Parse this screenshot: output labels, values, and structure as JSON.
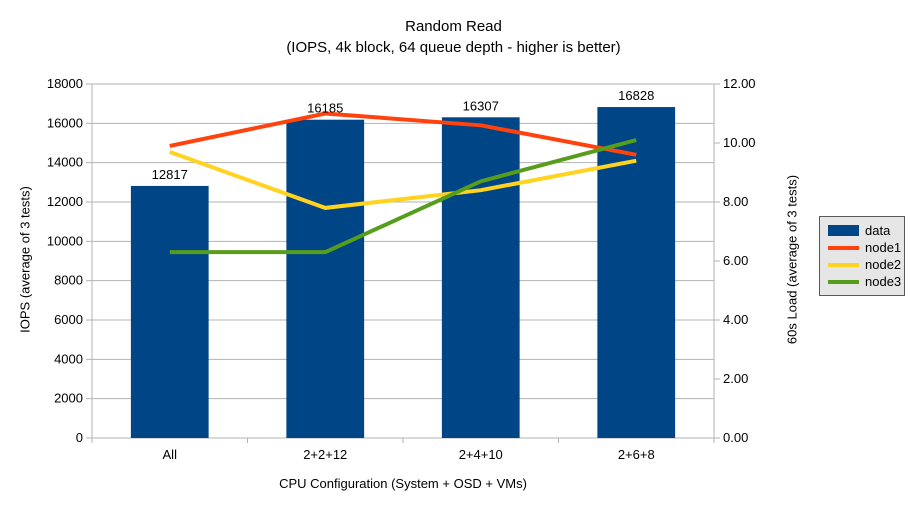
{
  "chart_data": {
    "type": "bar+line",
    "title": "Random Read",
    "subtitle": "(IOPS, 4k block, 64 queue depth - higher is better)",
    "categories": [
      "All",
      "2+2+12",
      "2+4+10",
      "2+6+8"
    ],
    "series": [
      {
        "name": "data",
        "type": "bar",
        "axis": "left",
        "color": "#004586",
        "values": [
          12817,
          16185,
          16307,
          16828
        ],
        "data_labels": true
      },
      {
        "name": "node1",
        "type": "line",
        "axis": "right",
        "color": "#FF420E",
        "values": [
          9.9,
          11.0,
          10.6,
          9.6
        ]
      },
      {
        "name": "node2",
        "type": "line",
        "axis": "right",
        "color": "#FFD320",
        "values": [
          9.7,
          7.8,
          8.4,
          9.4
        ]
      },
      {
        "name": "node3",
        "type": "line",
        "axis": "right",
        "color": "#579D1C",
        "values": [
          6.3,
          6.3,
          8.7,
          10.1
        ]
      }
    ],
    "left_axis": {
      "title": "IOPS (average of 3 tests)",
      "min": 0,
      "max": 18000,
      "step": 2000,
      "ticks": [
        "0",
        "2000",
        "4000",
        "6000",
        "8000",
        "10000",
        "12000",
        "14000",
        "16000",
        "18000"
      ]
    },
    "right_axis": {
      "title": "60s Load (average of 3 tests)",
      "min": 0,
      "max": 12,
      "step": 2,
      "ticks": [
        "0.00",
        "2.00",
        "4.00",
        "6.00",
        "8.00",
        "10.00",
        "12.00"
      ]
    },
    "x_axis": {
      "title": "CPU Configuration (System + OSD + VMs)"
    },
    "legend_position": "right",
    "grid": "horizontal",
    "style": {
      "background": "#FFFFFF",
      "grid_color": "#B3B3B3",
      "axis_color": "#B3B3B3",
      "text_color": "#000000",
      "legend_background": "#E6E6E6",
      "legend_border": "#595959"
    }
  }
}
